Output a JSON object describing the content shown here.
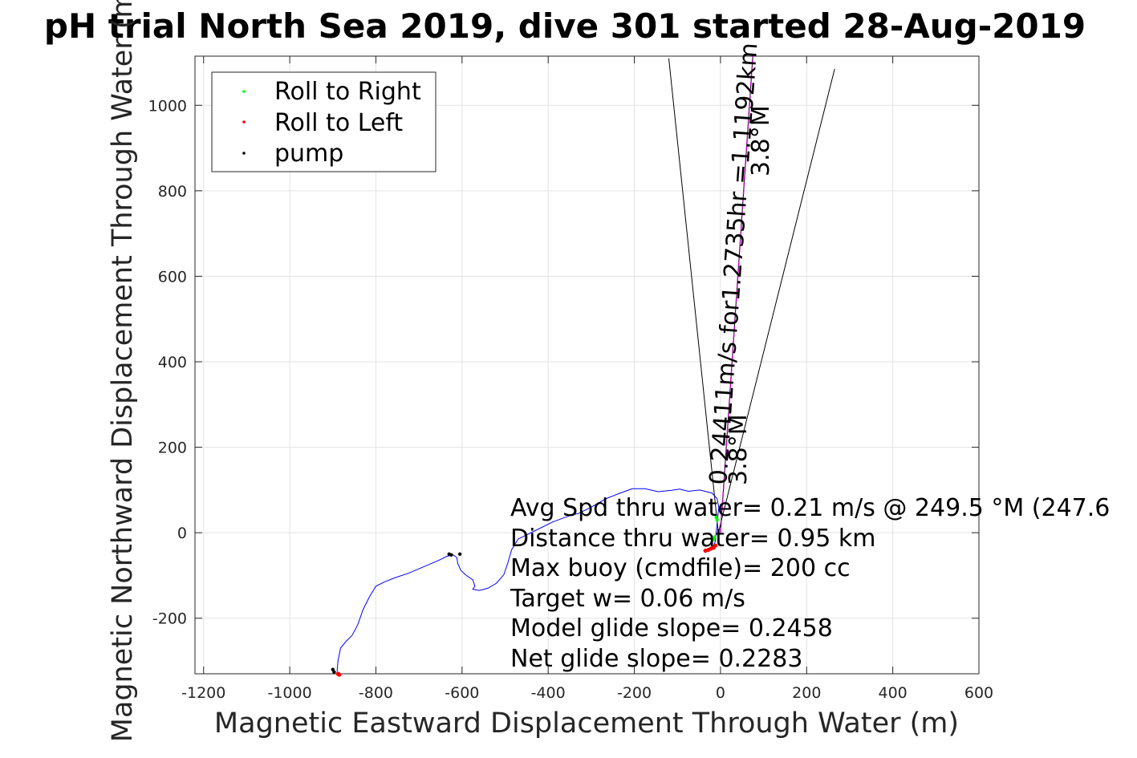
{
  "chart_data": {
    "type": "line",
    "title": "pH trial North Sea 2019, dive 301 started 28-Aug-2019",
    "xlabel": "Magnetic Eastward Displacement Through Water (m)",
    "ylabel": "Magnetic Northward Displacement Through Water (m)",
    "xlim": [
      -1220,
      600
    ],
    "ylim": [
      -330,
      1115
    ],
    "xticks": [
      -1200,
      -1000,
      -800,
      -600,
      -400,
      -200,
      0,
      200,
      400,
      600
    ],
    "yticks": [
      -200,
      0,
      200,
      400,
      600,
      800,
      1000
    ],
    "grid": true,
    "legend_position": "top-left",
    "legend": [
      {
        "label": "Roll to Right",
        "color": "#00ff00"
      },
      {
        "label": "Roll to Left",
        "color": "#ff0000"
      },
      {
        "label": "pump",
        "color": "#000000"
      }
    ],
    "track": {
      "color": "#0000ff",
      "points": [
        [
          -890,
          -325
        ],
        [
          -888,
          -300
        ],
        [
          -882,
          -270
        ],
        [
          -870,
          -255
        ],
        [
          -855,
          -240
        ],
        [
          -842,
          -215
        ],
        [
          -830,
          -180
        ],
        [
          -815,
          -150
        ],
        [
          -800,
          -125
        ],
        [
          -780,
          -115
        ],
        [
          -755,
          -105
        ],
        [
          -725,
          -95
        ],
        [
          -690,
          -80
        ],
        [
          -655,
          -65
        ],
        [
          -635,
          -55
        ],
        [
          -620,
          -52
        ],
        [
          -612,
          -58
        ],
        [
          -610,
          -72
        ],
        [
          -603,
          -88
        ],
        [
          -590,
          -100
        ],
        [
          -575,
          -110
        ],
        [
          -570,
          -125
        ],
        [
          -575,
          -132
        ],
        [
          -560,
          -135
        ],
        [
          -540,
          -130
        ],
        [
          -520,
          -118
        ],
        [
          -503,
          -98
        ],
        [
          -494,
          -72
        ],
        [
          -485,
          -40
        ],
        [
          -470,
          -15
        ],
        [
          -430,
          5
        ],
        [
          -390,
          25
        ],
        [
          -350,
          40
        ],
        [
          -330,
          45
        ],
        [
          -300,
          60
        ],
        [
          -265,
          80
        ],
        [
          -235,
          92
        ],
        [
          -205,
          103
        ],
        [
          -175,
          103
        ],
        [
          -145,
          96
        ],
        [
          -115,
          99
        ],
        [
          -95,
          102
        ],
        [
          -75,
          97
        ],
        [
          -48,
          100
        ],
        [
          -20,
          93
        ],
        [
          -8,
          80
        ],
        [
          -4,
          60
        ],
        [
          -6,
          40
        ],
        [
          -8,
          20
        ],
        [
          -10,
          0
        ],
        [
          -12,
          -20
        ],
        [
          -16,
          -30
        ],
        [
          -22,
          -38
        ],
        [
          -30,
          -40
        ],
        [
          -36,
          -38
        ]
      ]
    },
    "roll_left_points": [
      [
        -35,
        -42
      ],
      [
        -28,
        -40
      ],
      [
        -22,
        -37
      ],
      [
        -16,
        -35
      ],
      [
        -12,
        -30
      ],
      [
        -888,
        -330
      ],
      [
        -885,
        -332
      ]
    ],
    "roll_right_points": [
      [
        -10,
        36
      ],
      [
        -8,
        30
      ],
      [
        -14,
        -10
      ],
      [
        -16,
        -16
      ]
    ],
    "pump_points": [
      [
        -900,
        -320
      ],
      [
        -897,
        -326
      ],
      [
        -630,
        -50
      ],
      [
        -625,
        -52
      ],
      [
        -605,
        -50
      ]
    ],
    "heading_line": {
      "color": "#cc00cc",
      "from": [
        0,
        0
      ],
      "to": [
        75,
        1115
      ]
    },
    "error_cone_lines": [
      {
        "from": [
          -5,
          0
        ],
        "to": [
          -120,
          1110
        ]
      },
      {
        "from": [
          -5,
          0
        ],
        "to": [
          265,
          1085
        ]
      },
      {
        "from": [
          0,
          0
        ],
        "to": [
          75,
          1115
        ]
      }
    ],
    "annotations": {
      "heading_label_main": "0.24411m/s for1.2735hr =1.1192km",
      "heading_label_main_sub": "3.8°M",
      "heading_label_short": "3.8°M",
      "stats": [
        "Avg Spd thru water=  0.21 m/s @ 249.5 °M (247.6",
        "Distance thru water=  0.95 km",
        "Max buoy (cmdfile)= 200 cc",
        "Target w= 0.06 m/s",
        "Model glide slope= 0.2458",
        "Net glide slope= 0.2283"
      ]
    }
  }
}
